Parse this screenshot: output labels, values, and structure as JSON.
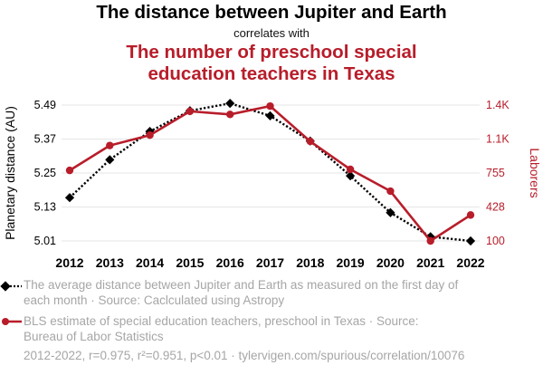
{
  "header": {
    "title": "The distance between Jupiter and Earth",
    "subtitle": "correlates with",
    "title2_line1": "The number of preschool special",
    "title2_line2": "education teachers in Texas"
  },
  "chart_data": {
    "type": "line",
    "x": [
      2012,
      2013,
      2014,
      2015,
      2016,
      2017,
      2018,
      2019,
      2020,
      2021,
      2022
    ],
    "x_tick_labels": [
      "2012",
      "2013",
      "2014",
      "2015",
      "2016",
      "2017",
      "2018",
      "2019",
      "2020",
      "2021",
      "2022"
    ],
    "series": [
      {
        "name": "The average distance between Jupiter and Earth as measured on the first day of each month · Source: Caclculated using Astropy",
        "axis": "left",
        "color": "#000000",
        "style": "dotted",
        "marker": "diamond",
        "values": [
          5.163,
          5.297,
          5.397,
          5.47,
          5.496,
          5.452,
          5.363,
          5.24,
          5.11,
          5.025,
          5.01
        ]
      },
      {
        "name": "BLS estimate of special education teachers, preschool in Texas · Source: Bureau of Labor Statistics",
        "axis": "right",
        "color": "#b81d2a",
        "style": "solid",
        "marker": "circle",
        "values": [
          780,
          1020,
          1120,
          1350,
          1320,
          1400,
          1060,
          790,
          580,
          100,
          350
        ]
      }
    ],
    "y_left": {
      "label": "Planetary distance (AU)",
      "ticks": [
        "5.01",
        "5.13",
        "5.25",
        "5.37",
        "5.49"
      ],
      "lim": [
        5.01,
        5.49
      ]
    },
    "y_right": {
      "label": "Laborers",
      "ticks": [
        "100",
        "428",
        "755",
        "1.1K",
        "1.4K"
      ],
      "lim": [
        100,
        1410
      ]
    },
    "grid": true,
    "legend_position": "bottom"
  },
  "legend": {
    "item1_line1": "The average distance between Jupiter and Earth as measured on the first day of",
    "item1_line2": "each month · Source: Caclculated using Astropy",
    "item2_line1": "BLS estimate of special education teachers, preschool in Texas · Source:",
    "item2_line2": "Bureau of Labor Statistics"
  },
  "footer": "2012-2022, r=0.975, r²=0.951, p<0.01 · tylervigen.com/spurious/correlation/10076",
  "colors": {
    "series1": "#000000",
    "series2": "#b81d2a",
    "muted_text": "#a6a6a6",
    "grid": "#e6e6e6"
  }
}
